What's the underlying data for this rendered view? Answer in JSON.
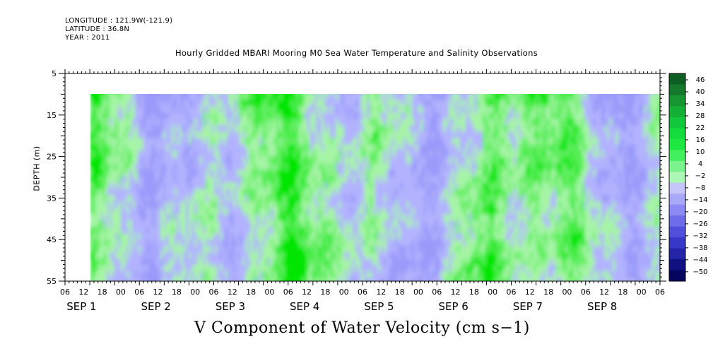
{
  "header": {
    "longitude": "LONGITUDE : 121.9W(-121.9)",
    "latitude": "LATITUDE : 36.8N",
    "year": "YEAR : 2011"
  },
  "chart_data": {
    "type": "heatmap",
    "title": "Hourly Gridded MBARI Mooring M0 Sea Water Temperature and Salinity Observations",
    "xlabel": "V Component of Water Velocity (cm s−1)",
    "ylabel": "DEPTH (m)",
    "x_range_hours": [
      0,
      144
    ],
    "x_data_start_hour": 7,
    "ylim": [
      5,
      55
    ],
    "y_ticks": [
      5,
      15,
      25,
      35,
      45,
      55
    ],
    "data_depth_range": [
      10,
      55
    ],
    "x_hour_tick_labels": [
      "06",
      "12",
      "18",
      "00",
      "06",
      "12",
      "18",
      "00",
      "06",
      "12",
      "18",
      "00",
      "06",
      "12",
      "18",
      "00",
      "06",
      "12",
      "18",
      "00",
      "06",
      "12",
      "18",
      "00",
      "06",
      "12",
      "18",
      "00",
      "06",
      "12",
      "18",
      "00",
      "06"
    ],
    "x_date_labels": [
      "SEP  1",
      "SEP  2",
      "SEP  3",
      "SEP  4",
      "SEP  5",
      "SEP  6",
      "SEP  7",
      "SEP  8"
    ],
    "colorbar_labels": [
      "46",
      "40",
      "34",
      "28",
      "22",
      "16",
      "10",
      "4",
      "-2",
      "-8",
      "-14",
      "-20",
      "-26",
      "-32",
      "-38",
      "-44",
      "-50"
    ],
    "colorbar_range": [
      -50,
      52
    ],
    "colors": {
      "strong_positive": "#00e600",
      "moderate_positive": "#62ef62",
      "weak_positive": "#a6f4a6",
      "weak_negative": "#b2b2ff",
      "moderate_negative": "#9a9afa"
    }
  }
}
